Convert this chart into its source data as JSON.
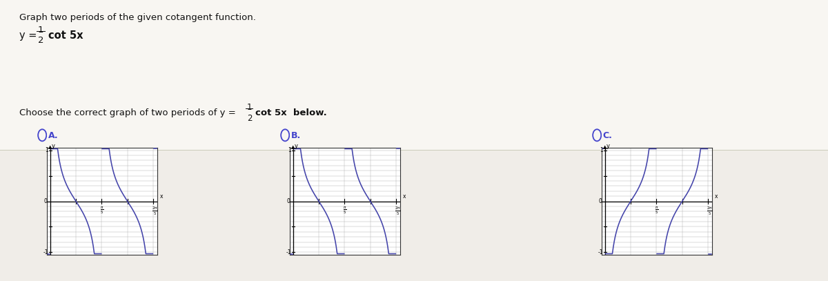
{
  "page_bg": "#f0ede8",
  "upper_bg": "#f8f6f2",
  "graph_bg": "#ffffff",
  "curve_color": "#4444aa",
  "grid_color": "#999999",
  "axis_color": "#000000",
  "label_color": "#4444cc",
  "spine_color": "#333333",
  "title": "Graph two periods of the given cotangent function.",
  "question_prefix": "Choose the correct graph of two periods of y = ",
  "question_suffix": " cot 5x  below.",
  "option_labels": [
    "A.",
    "B.",
    "C."
  ],
  "period": 0.6283185307179586,
  "ylim": [
    -1.0,
    1.0
  ],
  "graph_A": "cot_decreasing_steep",
  "graph_B": "cot_decreasing_normal",
  "graph_C": "neg_cot_increasing"
}
